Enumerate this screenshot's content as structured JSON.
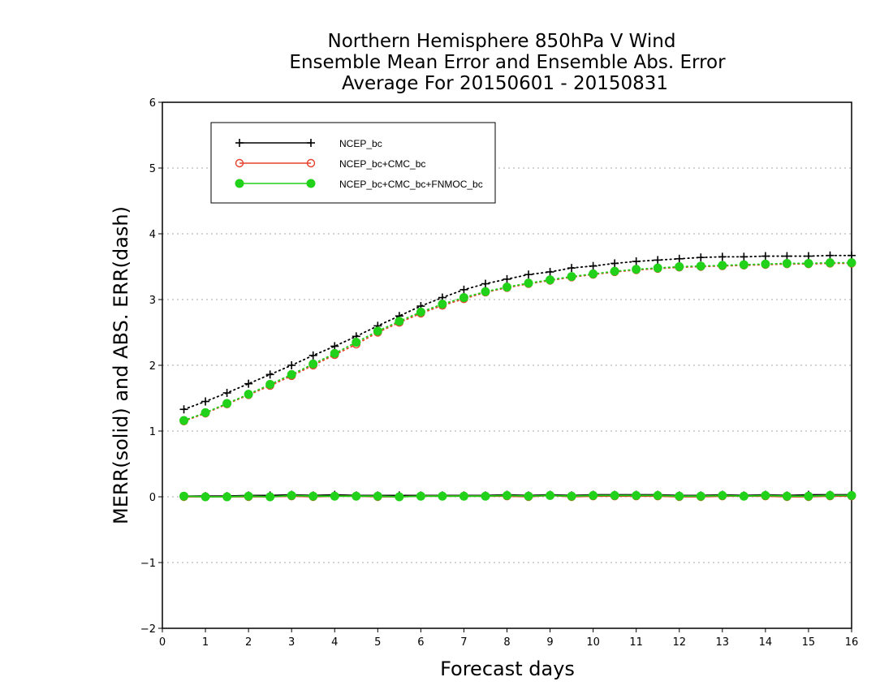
{
  "chart_data": {
    "type": "line",
    "title": [
      "Northern Hemisphere 850hPa V Wind",
      "Ensemble Mean Error and Ensemble Abs. Error",
      "Average For 20150601 - 20150831"
    ],
    "xlabel": "Forecast days",
    "ylabel": "MERR(solid) and ABS. ERR(dash)",
    "xlim": [
      0,
      16
    ],
    "ylim": [
      -2,
      6
    ],
    "xticks": [
      0,
      1,
      2,
      3,
      4,
      5,
      6,
      7,
      8,
      9,
      10,
      11,
      12,
      13,
      14,
      15,
      16
    ],
    "yticks": [
      -2,
      -1,
      0,
      1,
      2,
      3,
      4,
      5,
      6
    ],
    "grid": "horizontal dotted",
    "legend_position": "top-left",
    "x": [
      0.5,
      1,
      1.5,
      2,
      2.5,
      3,
      3.5,
      4,
      4.5,
      5,
      5.5,
      6,
      6.5,
      7,
      7.5,
      8,
      8.5,
      9,
      9.5,
      10,
      10.5,
      11,
      11.5,
      12,
      12.5,
      13,
      13.5,
      14,
      14.5,
      15,
      15.5,
      16
    ],
    "series": [
      {
        "name": "NCEP_bc",
        "color": "#000000",
        "marker": "plus",
        "merr": [
          0.01,
          0.01,
          0.01,
          0.02,
          0.02,
          0.03,
          0.02,
          0.03,
          0.02,
          0.02,
          0.02,
          0.02,
          0.02,
          0.02,
          0.02,
          0.03,
          0.02,
          0.03,
          0.02,
          0.03,
          0.03,
          0.03,
          0.03,
          0.02,
          0.02,
          0.03,
          0.02,
          0.03,
          0.02,
          0.03,
          0.03,
          0.03
        ],
        "abs_err": [
          1.33,
          1.45,
          1.58,
          1.72,
          1.86,
          2.0,
          2.15,
          2.29,
          2.44,
          2.6,
          2.75,
          2.9,
          3.03,
          3.15,
          3.24,
          3.31,
          3.38,
          3.42,
          3.48,
          3.51,
          3.55,
          3.58,
          3.6,
          3.62,
          3.64,
          3.65,
          3.65,
          3.66,
          3.66,
          3.66,
          3.67,
          3.67
        ]
      },
      {
        "name": "NCEP_bc+CMC_bc",
        "color": "#e8402a",
        "marker": "open-circle",
        "merr": [
          0.0,
          0.0,
          0.0,
          0.0,
          0.0,
          0.01,
          0.0,
          0.01,
          0.01,
          0.0,
          0.0,
          0.01,
          0.01,
          0.01,
          0.01,
          0.01,
          0.0,
          0.02,
          0.0,
          0.01,
          0.01,
          0.01,
          0.01,
          0.0,
          0.0,
          0.01,
          0.01,
          0.01,
          0.0,
          0.0,
          0.01,
          0.01
        ],
        "abs_err": [
          1.15,
          1.27,
          1.41,
          1.55,
          1.69,
          1.84,
          2.0,
          2.16,
          2.32,
          2.5,
          2.65,
          2.79,
          2.91,
          3.01,
          3.11,
          3.18,
          3.24,
          3.29,
          3.34,
          3.38,
          3.42,
          3.45,
          3.47,
          3.49,
          3.5,
          3.51,
          3.52,
          3.53,
          3.54,
          3.54,
          3.55,
          3.55
        ]
      },
      {
        "name": "NCEP_bc+CMC_bc+FNMOC_bc",
        "color": "#22d11a",
        "marker": "filled-circle",
        "merr": [
          0.01,
          0.0,
          0.0,
          0.01,
          0.0,
          0.02,
          0.01,
          0.01,
          0.01,
          0.01,
          0.0,
          0.01,
          0.01,
          0.01,
          0.01,
          0.02,
          0.01,
          0.02,
          0.01,
          0.02,
          0.02,
          0.02,
          0.02,
          0.01,
          0.01,
          0.02,
          0.01,
          0.02,
          0.01,
          0.01,
          0.02,
          0.02
        ],
        "abs_err": [
          1.16,
          1.28,
          1.42,
          1.56,
          1.71,
          1.86,
          2.02,
          2.18,
          2.35,
          2.52,
          2.67,
          2.81,
          2.93,
          3.03,
          3.12,
          3.19,
          3.25,
          3.3,
          3.35,
          3.39,
          3.43,
          3.46,
          3.48,
          3.5,
          3.51,
          3.52,
          3.53,
          3.54,
          3.55,
          3.55,
          3.56,
          3.56
        ]
      }
    ]
  }
}
